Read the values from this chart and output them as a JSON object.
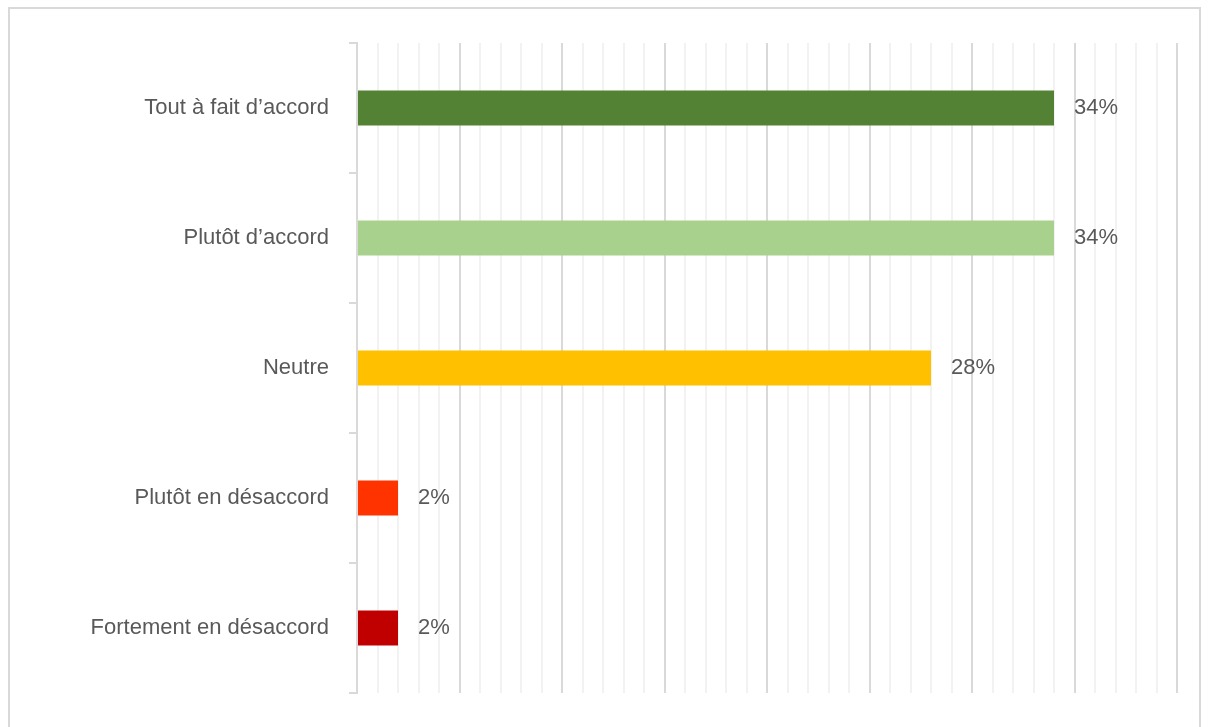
{
  "chart_data": {
    "type": "bar",
    "orientation": "horizontal",
    "categories": [
      "Tout à fait d’accord",
      "Plutôt d’accord",
      "Neutre",
      "Plutôt en désaccord",
      "Fortement en désaccord"
    ],
    "values": [
      34,
      34,
      28,
      2,
      2
    ],
    "colors": [
      "#548235",
      "#a9d18e",
      "#ffc000",
      "#ff3300",
      "#c00000"
    ],
    "value_labels": [
      "34%",
      "34%",
      "28%",
      "2%",
      "2%"
    ],
    "xlim": [
      0,
      40
    ],
    "xticks": [
      {
        "value": 0,
        "label": null
      },
      {
        "value": 1,
        "label": null
      },
      {
        "value": 2,
        "label": null
      },
      {
        "value": 3,
        "label": null
      },
      {
        "value": 4,
        "label": null
      },
      {
        "value": 5,
        "label": null
      },
      {
        "value": 6,
        "label": null
      },
      {
        "value": 7,
        "label": null
      },
      {
        "value": 8,
        "label": null
      },
      {
        "value": 9,
        "label": null
      },
      {
        "value": 10,
        "label": null
      },
      {
        "value": 11,
        "label": null
      },
      {
        "value": 12,
        "label": null
      },
      {
        "value": 13,
        "label": null
      },
      {
        "value": 14,
        "label": null
      },
      {
        "value": 15,
        "label": null
      },
      {
        "value": 16,
        "label": null
      },
      {
        "value": 17,
        "label": null
      },
      {
        "value": 18,
        "label": null
      },
      {
        "value": 19,
        "label": null
      },
      {
        "value": 20,
        "label": null
      },
      {
        "value": 21,
        "label": null
      },
      {
        "value": 22,
        "label": null
      },
      {
        "value": 23,
        "label": null
      },
      {
        "value": 24,
        "label": null
      },
      {
        "value": 25,
        "label": null
      },
      {
        "value": 26,
        "label": null
      },
      {
        "value": 27,
        "label": null
      },
      {
        "value": 28,
        "label": null
      },
      {
        "value": 29,
        "label": null
      },
      {
        "value": 30,
        "label": null
      },
      {
        "value": 31,
        "label": null
      },
      {
        "value": 32,
        "label": null
      },
      {
        "value": 33,
        "label": null
      },
      {
        "value": 34,
        "label": null
      },
      {
        "value": 35,
        "label": null
      },
      {
        "value": 36,
        "label": null
      },
      {
        "value": 37,
        "label": null
      },
      {
        "value": 38,
        "label": null
      },
      {
        "value": 39,
        "label": null
      },
      {
        "value": 40,
        "label": null
      }
    ],
    "grid": "x",
    "tick_labels": "y"
  }
}
